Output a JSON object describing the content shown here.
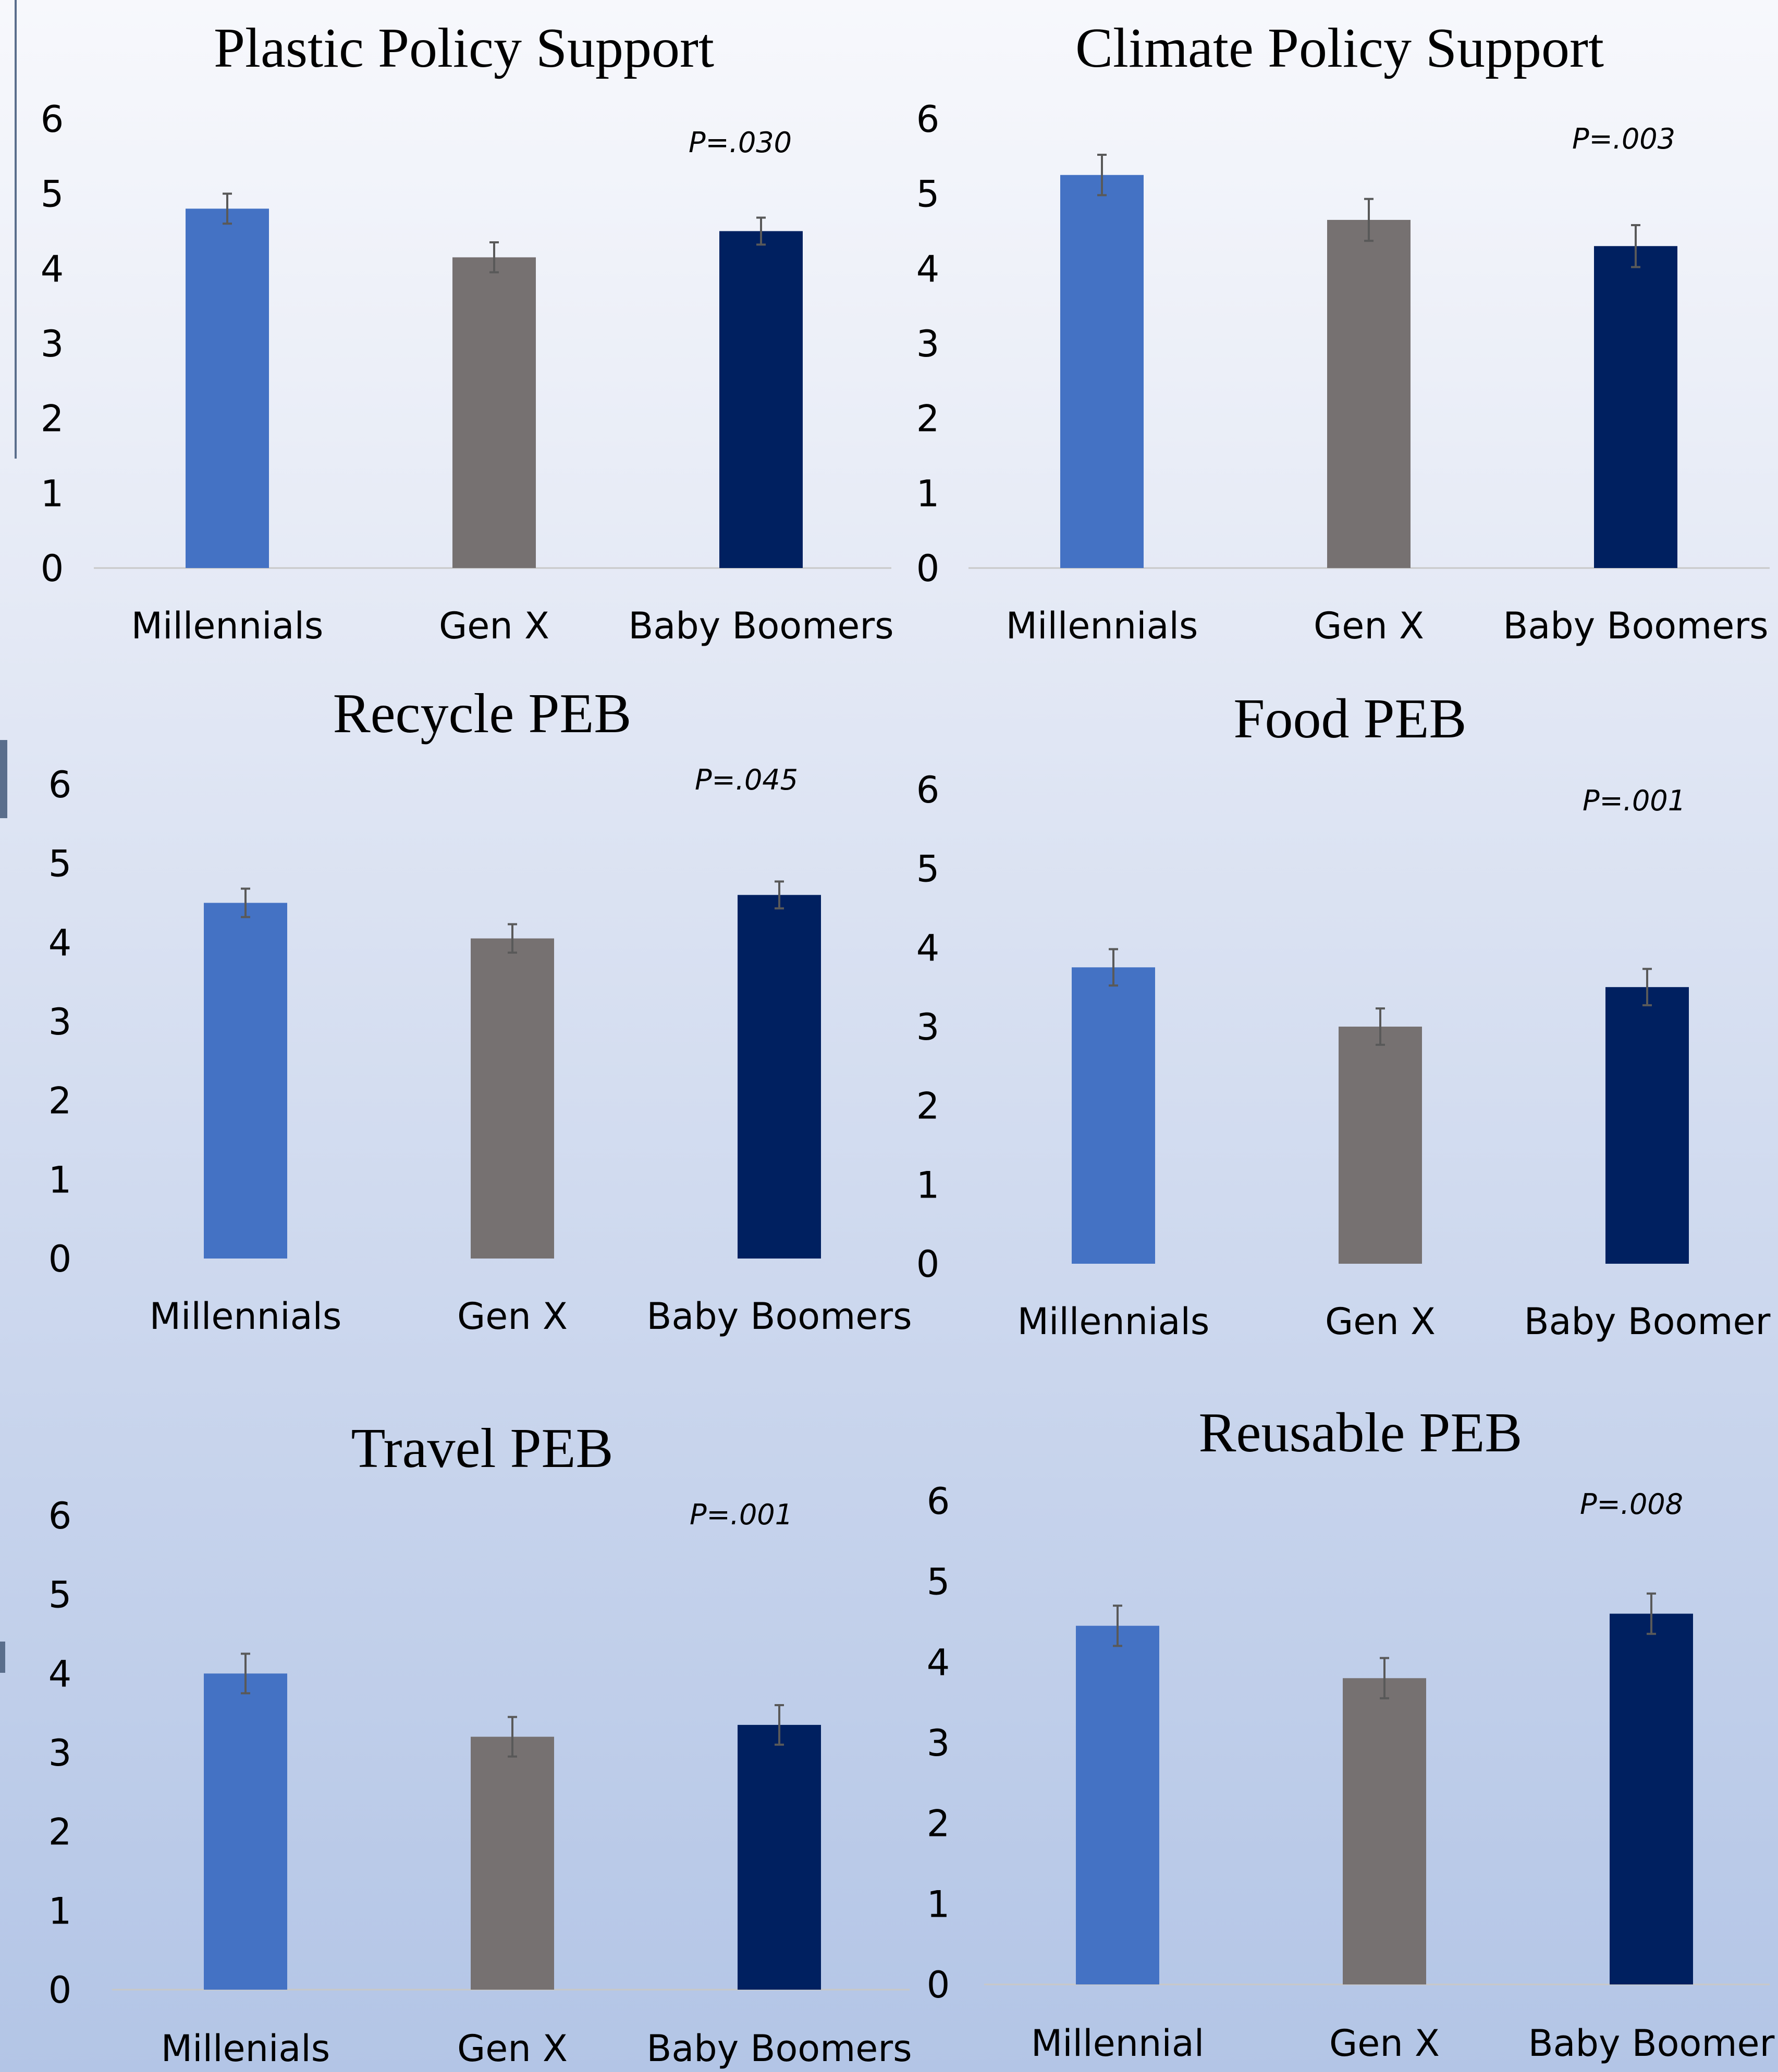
{
  "colors": {
    "millennials": "#4472c4",
    "gen_x": "#767171",
    "baby_boomers": "#002060",
    "error_bar": "#595959",
    "axis": "#c8c8c8"
  },
  "chart_data": [
    {
      "type": "bar",
      "title": "Plastic Policy Support",
      "p_value": "P=.030",
      "categories": [
        "Millennials",
        "Gen X",
        "Baby Boomers"
      ],
      "values": [
        4.8,
        4.15,
        4.5
      ],
      "errors": [
        0.2,
        0.2,
        0.18
      ],
      "ylim": [
        0,
        6
      ],
      "yticks": [
        "0",
        "1",
        "2",
        "3",
        "4",
        "5",
        "6"
      ],
      "baseline_visible": true
    },
    {
      "type": "bar",
      "title": "Climate Policy Support",
      "p_value": "P=.003",
      "categories": [
        "Millennials",
        "Gen X",
        "Baby Boomers"
      ],
      "values": [
        5.25,
        4.65,
        4.3
      ],
      "errors": [
        0.27,
        0.28,
        0.28
      ],
      "ylim": [
        0,
        6
      ],
      "yticks": [
        "0",
        "1",
        "2",
        "3",
        "4",
        "5",
        "6"
      ],
      "baseline_visible": true
    },
    {
      "type": "bar",
      "title": "Recycle PEB",
      "p_value": "P=.045",
      "categories": [
        "Millennials",
        "Gen X",
        "Baby Boomers"
      ],
      "values": [
        4.5,
        4.05,
        4.6
      ],
      "errors": [
        0.18,
        0.18,
        0.17
      ],
      "ylim": [
        0,
        6
      ],
      "yticks": [
        "0",
        "1",
        "2",
        "3",
        "4",
        "5",
        "6"
      ],
      "baseline_visible": false
    },
    {
      "type": "bar",
      "title": "Food PEB",
      "p_value": "P=.001",
      "categories": [
        "Millennials",
        "Gen X",
        "Baby Boomer"
      ],
      "values": [
        3.75,
        3.0,
        3.5
      ],
      "errors": [
        0.23,
        0.23,
        0.23
      ],
      "ylim": [
        0,
        6
      ],
      "yticks": [
        "0",
        "1",
        "2",
        "3",
        "4",
        "5",
        "6"
      ],
      "baseline_visible": false
    },
    {
      "type": "bar",
      "title": "Travel PEB",
      "p_value": "P=.001",
      "categories": [
        "Millenials",
        "Gen X",
        "Baby Boomers"
      ],
      "values": [
        4.0,
        3.2,
        3.35
      ],
      "errors": [
        0.25,
        0.25,
        0.25
      ],
      "ylim": [
        0,
        6
      ],
      "yticks": [
        "0",
        "1",
        "2",
        "3",
        "4",
        "5",
        "6"
      ],
      "baseline_visible": true
    },
    {
      "type": "bar",
      "title": "Reusable PEB",
      "p_value": "P=.008",
      "categories": [
        "Millennial",
        "Gen X",
        "Baby Boomer"
      ],
      "values": [
        4.45,
        3.8,
        4.6
      ],
      "errors": [
        0.25,
        0.25,
        0.25
      ],
      "ylim": [
        0,
        6
      ],
      "yticks": [
        "0",
        "1",
        "2",
        "3",
        "4",
        "5",
        "6"
      ],
      "baseline_visible": true
    }
  ]
}
